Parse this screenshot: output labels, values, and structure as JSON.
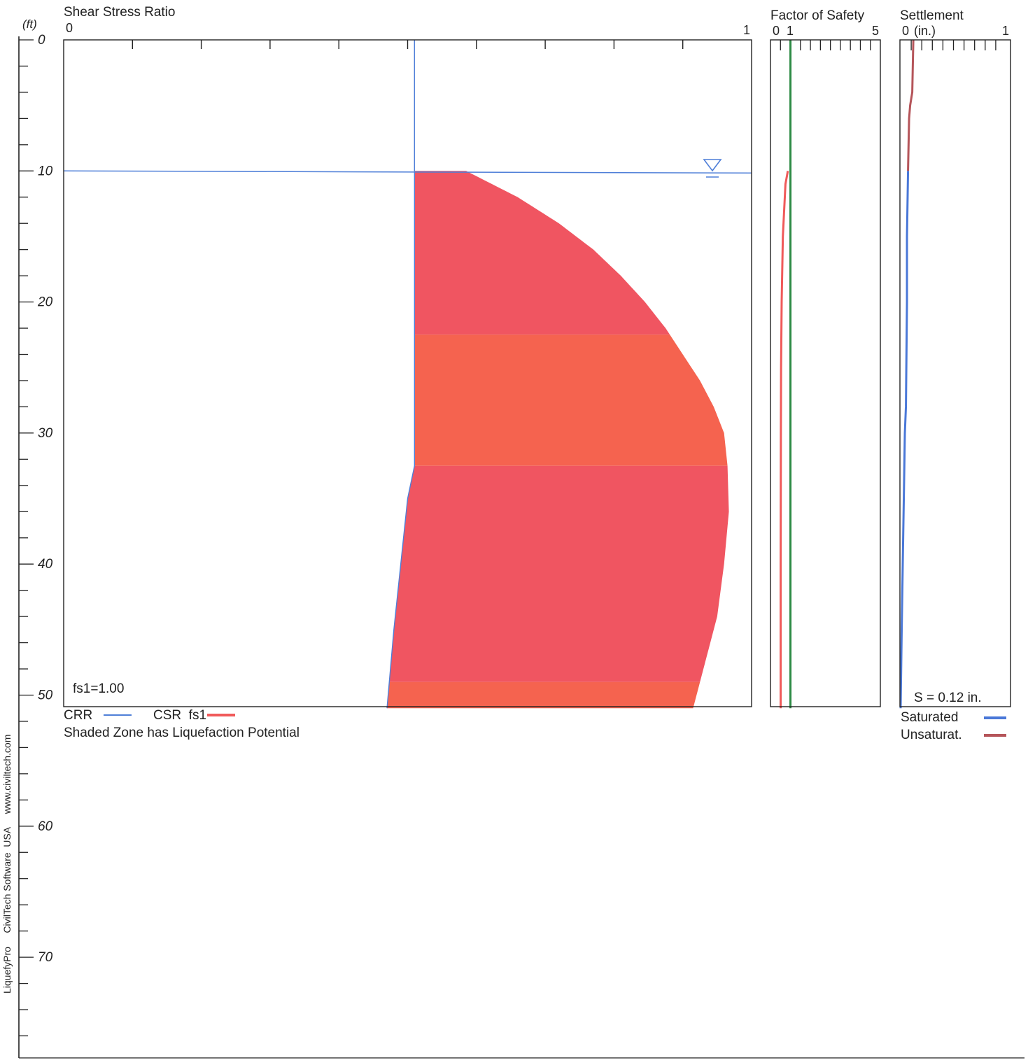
{
  "depth_axis": {
    "unit_label": "(ft)",
    "tick_labels": [
      "0",
      "10",
      "20",
      "30",
      "40",
      "50",
      "60",
      "70"
    ],
    "range": [
      0,
      80
    ]
  },
  "side_text": "LiquefyPro     CivilTech Software  USA     www.civiltech.com",
  "chart_data": [
    {
      "type": "area",
      "title": "Shear Stress Ratio",
      "x_tick_labels": [
        "0",
        "1"
      ],
      "xlim": [
        0,
        1
      ],
      "ylim": [
        0,
        51
      ],
      "water_table_depth": 10,
      "crr_upper_depth": [
        0,
        10
      ],
      "crr_upper_value": 0.51,
      "shaded_zone": {
        "depth": [
          10,
          22.5,
          22.5,
          32.5,
          32.5,
          35,
          40,
          45,
          51
        ],
        "crr": [
          0.51,
          0.51,
          0.51,
          0.51,
          0.51,
          0.5,
          0.49,
          0.48,
          0.47
        ],
        "csr_depth": [
          10,
          12,
          14,
          16,
          18,
          20,
          22,
          24,
          26,
          28,
          30,
          32.5,
          36,
          40,
          44,
          48,
          51
        ],
        "csr": [
          0.585,
          0.66,
          0.72,
          0.77,
          0.81,
          0.845,
          0.875,
          0.9,
          0.925,
          0.945,
          0.96,
          0.965,
          0.967,
          0.96,
          0.95,
          0.93,
          0.915
        ]
      },
      "annotation": "fs1=1.00",
      "legend": [
        {
          "label": "CRR",
          "color": "#4f7fd8"
        },
        {
          "label": "CSR  fs1",
          "color": "#f05a5a"
        }
      ],
      "caption": "Shaded Zone has Liquefaction Potential",
      "colors": {
        "crr_line": "#4f7fd8",
        "shade_dark": "#f05561",
        "shade_light": "#f5634f"
      }
    },
    {
      "type": "line",
      "title": "Factor of Safety",
      "x_tick_labels": [
        "0",
        "1",
        "5"
      ],
      "xlim": [
        0,
        5
      ],
      "ylim": [
        0,
        51
      ],
      "series": [
        {
          "name": "fs1",
          "color": "#2e8b45",
          "x": [
            1,
            1,
            1
          ],
          "y": [
            0,
            25,
            51
          ]
        },
        {
          "name": "Factor of Safety",
          "color": "#f05a5a",
          "x": [
            0.87,
            0.75,
            0.62,
            0.56,
            0.53,
            0.52,
            0.51,
            0.51
          ],
          "y": [
            10,
            11,
            15,
            20,
            25,
            30,
            40,
            51
          ]
        }
      ]
    },
    {
      "type": "line",
      "title": "Settlement",
      "unit_label": "(in.)",
      "x_tick_labels": [
        "0",
        "1"
      ],
      "xlim": [
        0,
        1
      ],
      "ylim": [
        0,
        51
      ],
      "annotation": "S = 0.12 in.",
      "legend": [
        {
          "label": "Saturated",
          "color": "#4a78d8"
        },
        {
          "label": "Unsaturat.",
          "color": "#b5555a"
        }
      ],
      "series": [
        {
          "name": "Unsaturat.",
          "color": "#b5555a",
          "x": [
            0.12,
            0.115,
            0.11,
            0.09,
            0.08,
            0.075,
            0.07
          ],
          "y": [
            0,
            2,
            4,
            5,
            6,
            8,
            10
          ]
        },
        {
          "name": "Saturated",
          "color": "#4a78d8",
          "x": [
            0.07,
            0.06,
            0.06,
            0.05,
            0.04,
            0.03,
            0.02,
            0.01,
            0.0
          ],
          "y": [
            10,
            15,
            20,
            28,
            30,
            35,
            40,
            45,
            51
          ]
        }
      ]
    }
  ]
}
